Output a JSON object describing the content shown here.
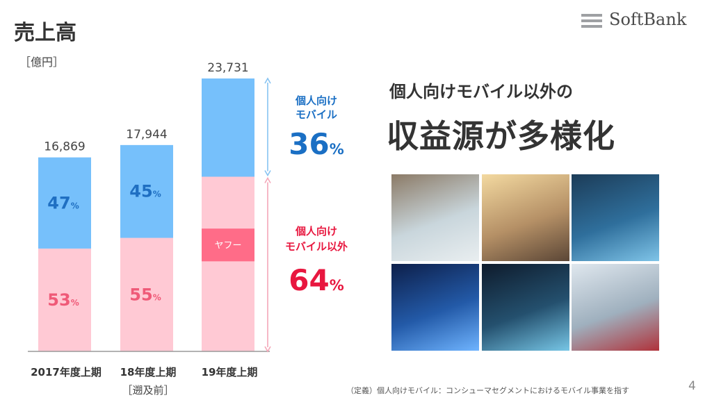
{
  "slide": {
    "title": "売上高",
    "logo_text": "SoftBank",
    "unit_label": "［億円］",
    "headline_line1": "個人向けモバイル以外の",
    "headline_line2": "収益源が多様化",
    "footnote": "（定義）個人向けモバイル：コンシューマセグメントにおけるモバイル事業を指す",
    "page_number": "4"
  },
  "chart_data": {
    "type": "bar",
    "stacked": true,
    "ylim": [
      0,
      25000
    ],
    "categories": [
      "2017年度上期",
      "18年度上期",
      "19年度上期"
    ],
    "category_sublabels": [
      "",
      "［遡及前］",
      ""
    ],
    "totals": [
      16869,
      17944,
      23731
    ],
    "total_labels": [
      "16,869",
      "17,944",
      "23,731"
    ],
    "series": [
      {
        "name": "個人向けモバイル以外",
        "shares": [
          0.53,
          0.55,
          0.64
        ],
        "labels": [
          "53",
          "55",
          ""
        ],
        "color": "#ffc9d4",
        "label_color": "#ef5a78"
      },
      {
        "name": "ヤフー",
        "band_in_last_bar": [
          0.33,
          0.45
        ],
        "label": "ヤフー",
        "color": "#ff6c88",
        "label_color": "#ffffff"
      },
      {
        "name": "個人向けモバイル",
        "shares": [
          0.47,
          0.45,
          0.36
        ],
        "labels": [
          "47",
          "45",
          ""
        ],
        "color": "#76c0fb",
        "label_color": "#1f6fc2"
      }
    ],
    "pct_sign": "%",
    "annotations": {
      "mobile": {
        "line1": "個人向け",
        "line2": "モバイル",
        "value": "36",
        "pct": "%",
        "color": "#1a6fc4",
        "arrow_color": "#86c3f2"
      },
      "non_mobile": {
        "line1": "個人向け",
        "line2": "モバイル以外",
        "value": "64",
        "pct": "%",
        "color": "#e8173f",
        "arrow_color": "#f4a7b8"
      }
    }
  },
  "photos": [
    {
      "name": "qr-payment-photo",
      "colors": [
        "#8b7a66",
        "#c9d6dc",
        "#e9eef0"
      ]
    },
    {
      "name": "hotel-room-photo",
      "colors": [
        "#f3d9a0",
        "#b59066",
        "#5b4636"
      ]
    },
    {
      "name": "tablet-dashboard-photo",
      "colors": [
        "#1c3c58",
        "#2f6f9c",
        "#7fc4e8"
      ]
    },
    {
      "name": "smart-city-photo",
      "colors": [
        "#0d1f4a",
        "#235aa8",
        "#6fb4ff"
      ]
    },
    {
      "name": "car-dashboard-photo",
      "colors": [
        "#0e1b2c",
        "#24506e",
        "#77c6e6"
      ]
    },
    {
      "name": "truck-highway-photo",
      "colors": [
        "#dfe7ee",
        "#9fb0be",
        "#b0323a"
      ]
    }
  ]
}
